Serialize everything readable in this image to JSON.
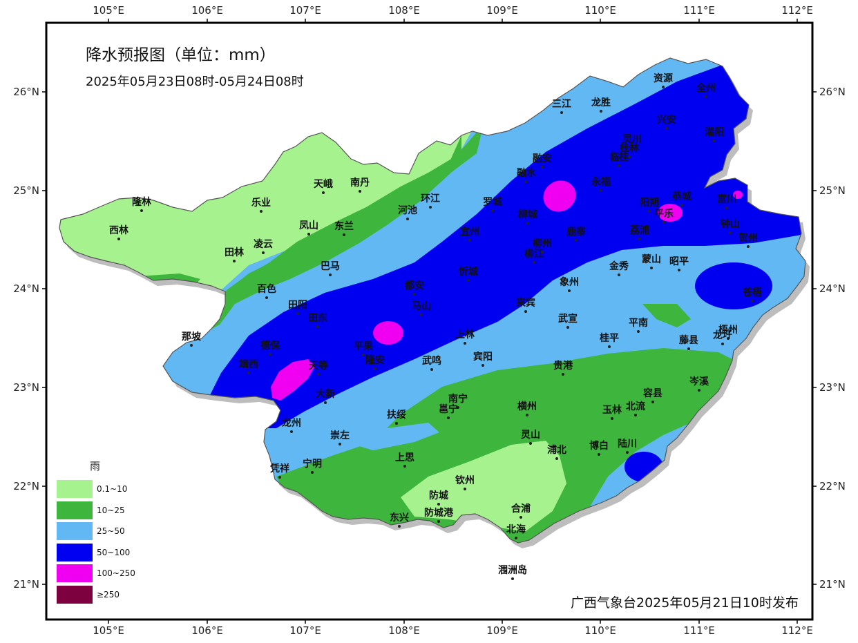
{
  "title": "降水预报图（单位：mm）",
  "subtitle": "2025年05月23日08时-05月24日08时",
  "footer": "广西气象台2025年05月21日10时发布",
  "map": {
    "lon_labels": [
      "105°E",
      "106°E",
      "107°E",
      "108°E",
      "109°E",
      "110°E",
      "111°E",
      "112°E"
    ],
    "lat_labels": [
      "26°N",
      "25°N",
      "24°N",
      "23°N",
      "22°N",
      "21°N"
    ]
  },
  "legend": {
    "title": "雨",
    "items": [
      {
        "label": "0.1~10",
        "color": "#a6f28f"
      },
      {
        "label": "10~25",
        "color": "#3eb53c"
      },
      {
        "label": "25~50",
        "color": "#62b8f2"
      },
      {
        "label": "50~100",
        "color": "#0000f0"
      },
      {
        "label": "100~250",
        "color": "#f000f0"
      },
      {
        "label": "≥250",
        "color": "#7d003f"
      }
    ]
  },
  "cities": [
    {
      "name": "资源"
    },
    {
      "name": "全州"
    },
    {
      "name": "三江"
    },
    {
      "name": "龙胜"
    },
    {
      "name": "兴安"
    },
    {
      "name": "灌阳"
    },
    {
      "name": "灵川"
    },
    {
      "name": "桂林"
    },
    {
      "name": "临桂"
    },
    {
      "name": "融安"
    },
    {
      "name": "融水"
    },
    {
      "name": "永福"
    },
    {
      "name": "恭城"
    },
    {
      "name": "阳朔"
    },
    {
      "name": "平乐"
    },
    {
      "name": "富川"
    },
    {
      "name": "钟山"
    },
    {
      "name": "贺州"
    },
    {
      "name": "天峨"
    },
    {
      "name": "南丹"
    },
    {
      "name": "隆林"
    },
    {
      "name": "乐业"
    },
    {
      "name": "环江"
    },
    {
      "name": "河池"
    },
    {
      "name": "罗城"
    },
    {
      "name": "柳城"
    },
    {
      "name": "鹿寨"
    },
    {
      "name": "荔浦"
    },
    {
      "name": "西林"
    },
    {
      "name": "凤山"
    },
    {
      "name": "东兰"
    },
    {
      "name": "宜州"
    },
    {
      "name": "田林"
    },
    {
      "name": "凌云"
    },
    {
      "name": "柳州"
    },
    {
      "name": "柳江"
    },
    {
      "name": "金秀"
    },
    {
      "name": "蒙山"
    },
    {
      "name": "昭平"
    },
    {
      "name": "巴马"
    },
    {
      "name": "百色"
    },
    {
      "name": "都安"
    },
    {
      "name": "忻城"
    },
    {
      "name": "象州"
    },
    {
      "name": "苍梧"
    },
    {
      "name": "田阳"
    },
    {
      "name": "马山"
    },
    {
      "name": "来宾"
    },
    {
      "name": "田东"
    },
    {
      "name": "武宣"
    },
    {
      "name": "平南"
    },
    {
      "name": "那坡"
    },
    {
      "name": "德保"
    },
    {
      "name": "平果"
    },
    {
      "name": "上林"
    },
    {
      "name": "桂平"
    },
    {
      "name": "藤县"
    },
    {
      "name": "梧州"
    },
    {
      "name": "龙圩"
    },
    {
      "name": "靖西"
    },
    {
      "name": "天等"
    },
    {
      "name": "隆安"
    },
    {
      "name": "武鸣"
    },
    {
      "name": "宾阳"
    },
    {
      "name": "贵港"
    },
    {
      "name": "岑溪"
    },
    {
      "name": "大新"
    },
    {
      "name": "南宁"
    },
    {
      "name": "邕宁"
    },
    {
      "name": "横州"
    },
    {
      "name": "玉林"
    },
    {
      "name": "北流"
    },
    {
      "name": "容县"
    },
    {
      "name": "扶绥"
    },
    {
      "name": "龙州"
    },
    {
      "name": "崇左"
    },
    {
      "name": "灵山"
    },
    {
      "name": "浦北"
    },
    {
      "name": "博白"
    },
    {
      "name": "陆川"
    },
    {
      "name": "凭祥"
    },
    {
      "name": "宁明"
    },
    {
      "name": "上思"
    },
    {
      "name": "钦州"
    },
    {
      "name": "防城"
    },
    {
      "name": "防城港"
    },
    {
      "name": "东兴"
    },
    {
      "name": "合浦"
    },
    {
      "name": "北海"
    },
    {
      "name": "涠洲岛"
    }
  ]
}
